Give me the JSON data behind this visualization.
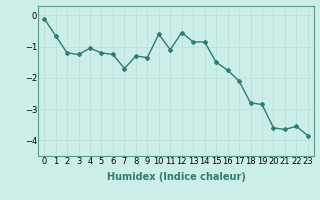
{
  "x": [
    0,
    1,
    2,
    3,
    4,
    5,
    6,
    7,
    8,
    9,
    10,
    11,
    12,
    13,
    14,
    15,
    16,
    17,
    18,
    19,
    20,
    21,
    22,
    23
  ],
  "y": [
    -0.1,
    -0.65,
    -1.2,
    -1.25,
    -1.05,
    -1.2,
    -1.25,
    -1.7,
    -1.3,
    -1.35,
    -0.6,
    -1.1,
    -0.55,
    -0.85,
    -0.85,
    -1.5,
    -1.75,
    -2.1,
    -2.8,
    -2.85,
    -3.6,
    -3.65,
    -3.55,
    -3.85
  ],
  "line_color": "#2e7d6e",
  "marker": "D",
  "marker_size": 2,
  "linewidth": 1.0,
  "xlabel": "Humidex (Indice chaleur)",
  "xlabel_fontsize": 7,
  "xlabel_bold": true,
  "ylim": [
    -4.5,
    0.3
  ],
  "xlim": [
    -0.5,
    23.5
  ],
  "yticks": [
    0,
    -1,
    -2,
    -3,
    -4
  ],
  "xtick_labels": [
    "0",
    "1",
    "2",
    "3",
    "4",
    "5",
    "6",
    "7",
    "8",
    "9",
    "10",
    "11",
    "12",
    "13",
    "14",
    "15",
    "16",
    "17",
    "18",
    "19",
    "20",
    "21",
    "22",
    "23"
  ],
  "bg_color": "#cceee8",
  "grid_color": "#b8ddd8",
  "tick_fontsize": 6,
  "spine_color": "#5a9a8a"
}
